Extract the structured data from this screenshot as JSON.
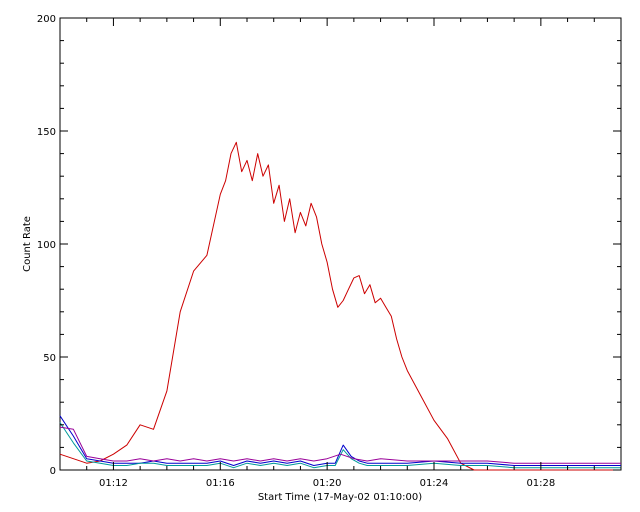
{
  "chart_data": {
    "type": "line",
    "title": "",
    "xlabel": "Start Time (17-May-02 01:10:00)",
    "ylabel": "Count Rate",
    "x_unit": "minutes",
    "xlim": [
      0,
      21.0
    ],
    "ylim": [
      0,
      200
    ],
    "x_ticks": [
      {
        "x": 2,
        "label": "01:12"
      },
      {
        "x": 6,
        "label": "01:16"
      },
      {
        "x": 10,
        "label": "01:20"
      },
      {
        "x": 14,
        "label": "01:24"
      },
      {
        "x": 18,
        "label": "01:28"
      }
    ],
    "y_ticks": [
      {
        "y": 0,
        "label": "0"
      },
      {
        "y": 50,
        "label": "50"
      },
      {
        "y": 100,
        "label": "100"
      },
      {
        "y": 150,
        "label": "150"
      },
      {
        "y": 200,
        "label": "200"
      }
    ],
    "grid": false,
    "series": [
      {
        "color": "#cc0000",
        "x": [
          0.0,
          0.5,
          1.0,
          1.5,
          2.0,
          2.5,
          3.0,
          3.5,
          4.0,
          4.5,
          5.0,
          5.5,
          6.0,
          6.2,
          6.4,
          6.6,
          6.8,
          7.0,
          7.2,
          7.4,
          7.6,
          7.8,
          8.0,
          8.2,
          8.4,
          8.6,
          8.8,
          9.0,
          9.2,
          9.4,
          9.6,
          9.8,
          10.0,
          10.2,
          10.4,
          10.6,
          10.8,
          11.0,
          11.2,
          11.4,
          11.6,
          11.8,
          12.0,
          12.2,
          12.4,
          12.6,
          12.8,
          13.0,
          13.5,
          14.0,
          14.5,
          15.0,
          15.5,
          16.0,
          17.0,
          18.0,
          19.0,
          20.0,
          21.0
        ],
        "y": [
          7,
          5,
          3,
          4,
          7,
          11,
          20,
          18,
          35,
          70,
          88,
          95,
          122,
          128,
          140,
          145,
          132,
          137,
          128,
          140,
          130,
          135,
          118,
          126,
          110,
          120,
          105,
          114,
          108,
          118,
          112,
          100,
          92,
          80,
          72,
          75,
          80,
          85,
          86,
          78,
          82,
          74,
          76,
          72,
          68,
          58,
          50,
          44,
          33,
          22,
          14,
          3,
          0,
          0,
          0,
          0,
          0,
          0,
          0
        ]
      },
      {
        "color": "#0000cc",
        "x": [
          0.0,
          0.5,
          1.0,
          1.5,
          2.0,
          2.5,
          3.0,
          3.5,
          4.0,
          4.5,
          5.0,
          5.5,
          6.0,
          6.5,
          7.0,
          7.5,
          8.0,
          8.5,
          9.0,
          9.5,
          10.0,
          10.3,
          10.6,
          10.9,
          11.2,
          11.5,
          12.0,
          13.0,
          14.0,
          15.0,
          16.0,
          17.0,
          18.0,
          19.0,
          20.0,
          21.0
        ],
        "y": [
          24,
          15,
          5,
          4,
          3,
          3,
          3,
          4,
          3,
          3,
          3,
          3,
          4,
          2,
          4,
          3,
          4,
          3,
          4,
          2,
          3,
          3,
          11,
          6,
          4,
          3,
          3,
          3,
          4,
          3,
          3,
          2,
          2,
          2,
          2,
          2
        ]
      },
      {
        "color": "#009999",
        "x": [
          0.0,
          0.5,
          1.0,
          1.5,
          2.0,
          2.5,
          3.0,
          3.5,
          4.0,
          4.5,
          5.0,
          5.5,
          6.0,
          6.5,
          7.0,
          7.5,
          8.0,
          8.5,
          9.0,
          9.5,
          10.0,
          10.3,
          10.6,
          10.9,
          11.2,
          11.5,
          12.0,
          13.0,
          14.0,
          15.0,
          16.0,
          17.0,
          18.0,
          19.0,
          20.0,
          21.0
        ],
        "y": [
          21,
          12,
          4,
          3,
          2,
          2,
          3,
          3,
          2,
          2,
          2,
          2,
          3,
          1,
          3,
          2,
          3,
          2,
          3,
          1,
          2,
          2,
          9,
          5,
          3,
          2,
          2,
          2,
          3,
          2,
          2,
          1,
          1,
          1,
          1,
          1
        ]
      },
      {
        "color": "#990099",
        "x": [
          0.0,
          0.5,
          1.0,
          1.5,
          2.0,
          2.5,
          3.0,
          3.5,
          4.0,
          4.5,
          5.0,
          5.5,
          6.0,
          6.5,
          7.0,
          7.5,
          8.0,
          8.5,
          9.0,
          9.5,
          10.0,
          10.5,
          11.0,
          11.5,
          12.0,
          13.0,
          14.0,
          15.0,
          16.0,
          17.0,
          18.0,
          19.0,
          20.0,
          21.0
        ],
        "y": [
          19,
          18,
          6,
          5,
          4,
          4,
          5,
          4,
          5,
          4,
          5,
          4,
          5,
          4,
          5,
          4,
          5,
          4,
          5,
          4,
          5,
          7,
          5,
          4,
          5,
          4,
          4,
          4,
          4,
          3,
          3,
          3,
          3,
          3
        ]
      }
    ]
  }
}
